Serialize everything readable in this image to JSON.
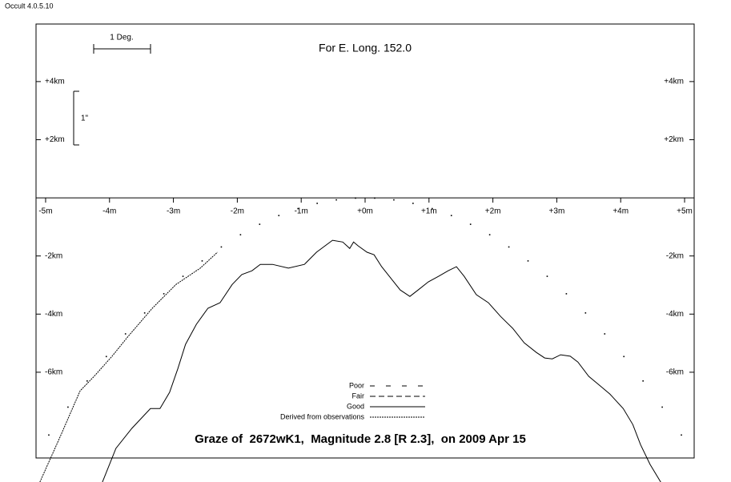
{
  "app_label": "Occult 4.0.5.10",
  "chart_data": {
    "type": "graze-profile",
    "title": "Graze of  2672wK1,  Magnitude 2.8 [R 2.3],  on 2009 Apr 15",
    "subtitle": "For E. Long. 152.0",
    "scale_x_label": "1 Deg.",
    "scale_y_label": "1\"",
    "xlim": [
      -5.15,
      5.15
    ],
    "ylim": [
      -8.95,
      5.98
    ],
    "xticks": [
      {
        "value": -5,
        "label": "-5m"
      },
      {
        "value": -4,
        "label": "-4m"
      },
      {
        "value": -3,
        "label": "-3m"
      },
      {
        "value": -2,
        "label": "-2m"
      },
      {
        "value": -1,
        "label": "-1m"
      },
      {
        "value": 0,
        "label": "+0m"
      },
      {
        "value": 1,
        "label": "+1m"
      },
      {
        "value": 2,
        "label": "+2m"
      },
      {
        "value": 3,
        "label": "+3m"
      },
      {
        "value": 4,
        "label": "+4m"
      },
      {
        "value": 5,
        "label": "+5m"
      }
    ],
    "yticks": [
      {
        "value": 4,
        "label": "+4km"
      },
      {
        "value": 2,
        "label": "+2km"
      },
      {
        "value": -2,
        "label": "-2km"
      },
      {
        "value": -4,
        "label": "-4km"
      },
      {
        "value": -6,
        "label": "-6km"
      }
    ],
    "legend": [
      {
        "label": "Poor",
        "style": "poor"
      },
      {
        "label": "Fair",
        "style": "fair"
      },
      {
        "label": "Good",
        "style": "good"
      },
      {
        "label": "Derived from observations",
        "style": "derived"
      }
    ],
    "series": [
      {
        "style": "dots",
        "color": "#000000",
        "x": [
          -4.95,
          -4.65,
          -4.35,
          -4.05,
          -3.75,
          -3.45,
          -3.15,
          -2.85,
          -2.55,
          -2.25,
          -1.95,
          -1.65,
          -1.35,
          -1.05,
          -0.75,
          -0.45,
          -0.15,
          0.15,
          0.45,
          0.75,
          1.05,
          1.35,
          1.65,
          1.95,
          2.25,
          2.55,
          2.85,
          3.15,
          3.45,
          3.75,
          4.05,
          4.35,
          4.65,
          4.95
        ],
        "values": [
          -8.16,
          -7.2,
          -6.3,
          -5.46,
          -4.68,
          -3.96,
          -3.3,
          -2.7,
          -2.17,
          -1.69,
          -1.27,
          -0.91,
          -0.61,
          -0.37,
          -0.19,
          -0.07,
          -0.01,
          -0.01,
          -0.07,
          -0.19,
          -0.37,
          -0.61,
          -0.91,
          -1.27,
          -1.69,
          -2.17,
          -2.7,
          -3.3,
          -3.96,
          -4.68,
          -5.46,
          -6.3,
          -7.2,
          -8.16
        ]
      },
      {
        "style": "good",
        "color": "#000000",
        "x": [
          -4.12,
          -3.9,
          -3.65,
          -3.36,
          -3.21,
          -3.06,
          -2.93,
          -2.81,
          -2.64,
          -2.46,
          -2.27,
          -2.08,
          -1.93,
          -1.77,
          -1.64,
          -1.45,
          -1.2,
          -0.95,
          -0.76,
          -0.51,
          -0.35,
          -0.24,
          -0.18,
          -0.11,
          0.03,
          0.14,
          0.26,
          0.43,
          0.55,
          0.7,
          0.83,
          0.99,
          1.15,
          1.3,
          1.43,
          1.55,
          1.74,
          1.93,
          2.12,
          2.31,
          2.49,
          2.68,
          2.81,
          2.93,
          3.06,
          3.21,
          3.33,
          3.5,
          3.68,
          3.83,
          4.04,
          4.19,
          4.31,
          4.46,
          4.64
        ],
        "values": [
          -9.83,
          -8.62,
          -7.93,
          -7.25,
          -7.25,
          -6.69,
          -5.87,
          -5.04,
          -4.35,
          -3.8,
          -3.61,
          -2.98,
          -2.64,
          -2.51,
          -2.29,
          -2.29,
          -2.42,
          -2.29,
          -1.87,
          -1.46,
          -1.52,
          -1.74,
          -1.52,
          -1.65,
          -1.87,
          -1.96,
          -2.37,
          -2.84,
          -3.17,
          -3.39,
          -3.17,
          -2.89,
          -2.7,
          -2.51,
          -2.37,
          -2.7,
          -3.33,
          -3.61,
          -4.08,
          -4.49,
          -4.99,
          -5.32,
          -5.51,
          -5.54,
          -5.4,
          -5.45,
          -5.65,
          -6.14,
          -6.47,
          -6.75,
          -7.25,
          -7.8,
          -8.49,
          -9.17,
          -9.83
        ]
      },
      {
        "style": "derived",
        "color": "#000000",
        "x": [
          -5.09,
          -4.77,
          -4.46,
          -4.24,
          -3.96,
          -3.71,
          -3.33,
          -2.96,
          -2.58,
          -2.31
        ],
        "values": [
          -9.78,
          -8.21,
          -6.64,
          -6.14,
          -5.45,
          -4.77,
          -3.8,
          -2.98,
          -2.42,
          -1.87
        ]
      }
    ]
  }
}
